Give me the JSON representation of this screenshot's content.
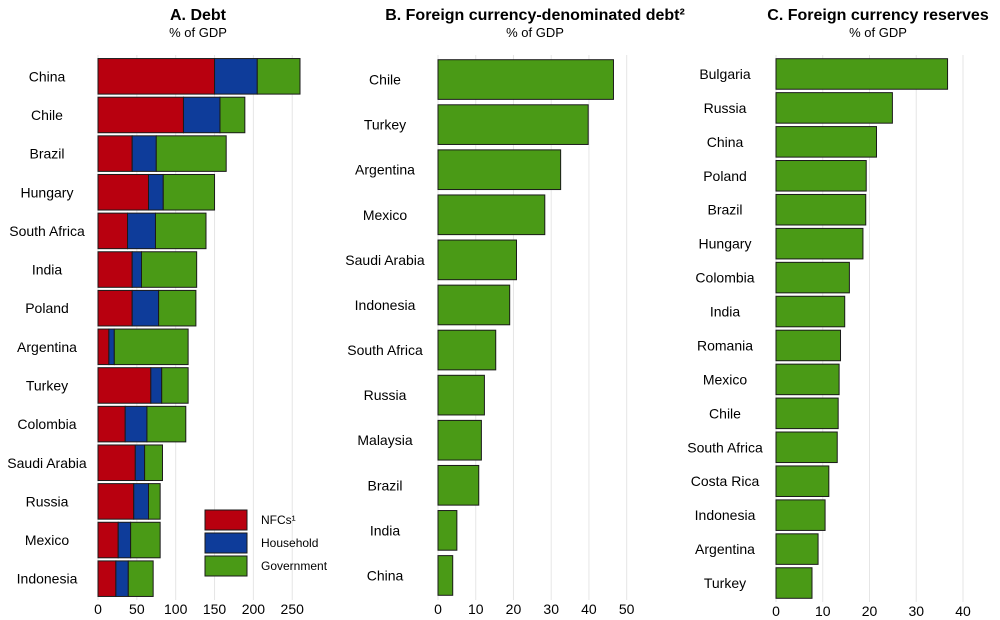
{
  "colors": {
    "nfc": "#b8000f",
    "household": "#0e3c9a",
    "government": "#4a9a16",
    "stroke": "#1a1a1a",
    "grid": "#e6e6e6"
  },
  "chart_data": [
    {
      "type": "bar",
      "orientation": "horizontal",
      "stacked": true,
      "title": "A. Debt",
      "subtitle": "% of GDP",
      "categories": [
        "China",
        "Chile",
        "Brazil",
        "Hungary",
        "South Africa",
        "India",
        "Poland",
        "Argentina",
        "Turkey",
        "Colombia",
        "Saudi Arabia",
        "Russia",
        "Mexico",
        "Indonesia"
      ],
      "series": [
        {
          "name": "NFCs¹",
          "color_key": "nfc",
          "values": [
            150,
            110,
            44,
            65,
            38,
            44,
            44,
            14,
            68,
            35,
            48,
            46,
            26,
            23
          ]
        },
        {
          "name": "Household",
          "color_key": "household",
          "values": [
            55,
            47,
            31,
            19,
            36,
            12,
            34,
            7,
            14,
            28,
            12,
            19,
            16,
            16
          ]
        },
        {
          "name": "Government",
          "color_key": "government",
          "values": [
            55,
            32,
            90,
            66,
            65,
            71,
            48,
            95,
            34,
            50,
            23,
            15,
            38,
            32
          ]
        }
      ],
      "xlim": [
        0,
        260
      ],
      "xticks": [
        0,
        50,
        100,
        150,
        200,
        250
      ],
      "legend_position": "bottom-right"
    },
    {
      "type": "bar",
      "orientation": "horizontal",
      "title": "B. Foreign currency-denominated debt²",
      "subtitle": "% of GDP",
      "categories": [
        "Chile",
        "Turkey",
        "Argentina",
        "Mexico",
        "Saudi Arabia",
        "Indonesia",
        "South Africa",
        "Russia",
        "Malaysia",
        "Brazil",
        "India",
        "China"
      ],
      "values": [
        46.5,
        39.8,
        32.5,
        28.3,
        20.8,
        19.0,
        15.3,
        12.3,
        11.5,
        10.8,
        5.0,
        3.9
      ],
      "color_key": "government",
      "xlim": [
        0,
        53
      ],
      "xticks": [
        0,
        10,
        20,
        30,
        40,
        50
      ]
    },
    {
      "type": "bar",
      "orientation": "horizontal",
      "title": "C. Foreign currency reserves",
      "subtitle": "% of GDP",
      "categories": [
        "Bulgaria",
        "Russia",
        "China",
        "Poland",
        "Brazil",
        "Hungary",
        "Colombia",
        "India",
        "Romania",
        "Mexico",
        "Chile",
        "South Africa",
        "Costa Rica",
        "Indonesia",
        "Argentina",
        "Turkey"
      ],
      "values": [
        36.7,
        24.9,
        21.5,
        19.3,
        19.2,
        18.6,
        15.7,
        14.7,
        13.8,
        13.5,
        13.3,
        13.1,
        11.3,
        10.5,
        9.0,
        7.7
      ],
      "color_key": "government",
      "xlim": [
        0,
        41.5
      ],
      "xticks": [
        0,
        10,
        20,
        30,
        40
      ]
    }
  ]
}
